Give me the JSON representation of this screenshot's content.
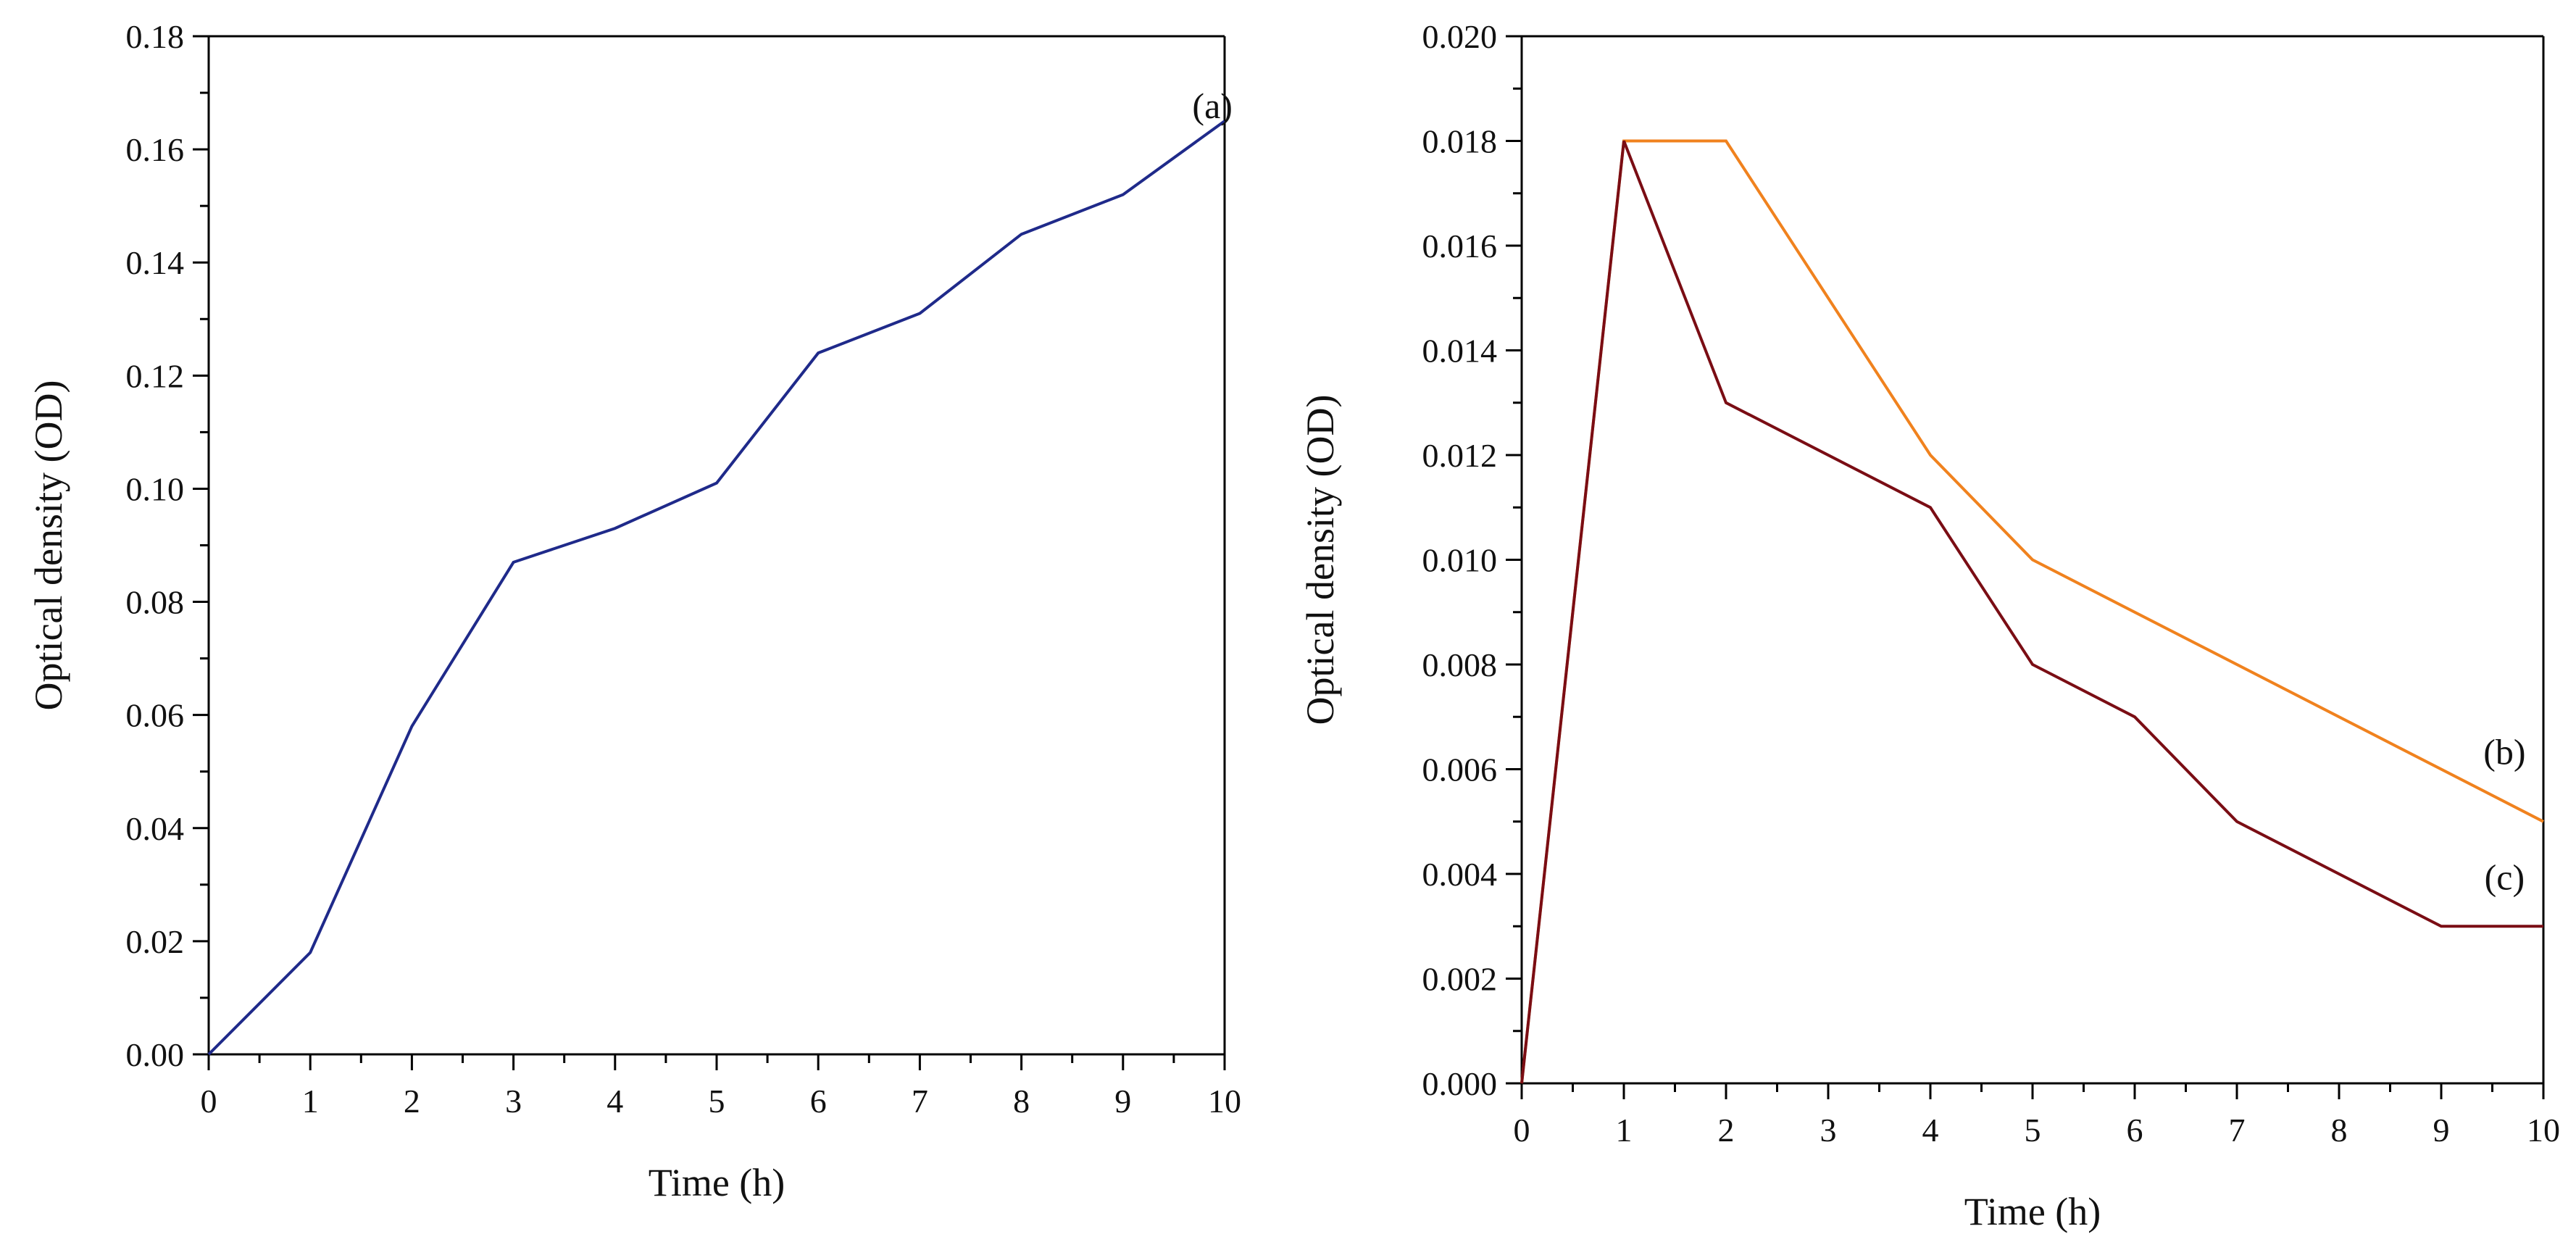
{
  "chart_data": [
    {
      "type": "line",
      "title": "",
      "xlabel": "Time (h)",
      "ylabel": "Optical density (OD)",
      "xlim": [
        0,
        10
      ],
      "ylim": [
        0,
        0.18
      ],
      "x_ticks": [
        0,
        1,
        2,
        3,
        4,
        5,
        6,
        7,
        8,
        9,
        10
      ],
      "x_tick_labels": [
        "0",
        "1",
        "2",
        "3",
        "4",
        "5",
        "6",
        "7",
        "8",
        "9",
        "10"
      ],
      "y_ticks": [
        0,
        0.02,
        0.04,
        0.06,
        0.08,
        0.1,
        0.12,
        0.14,
        0.16,
        0.18
      ],
      "y_tick_labels": [
        "0.00",
        "0.02",
        "0.04",
        "0.06",
        "0.08",
        "0.10",
        "0.12",
        "0.14",
        "0.16",
        "0.18"
      ],
      "grid": false,
      "series": [
        {
          "name": "(a)",
          "color": "#1f2a8a",
          "x": [
            0,
            1,
            2,
            3,
            4,
            5,
            6,
            7,
            8,
            9,
            10
          ],
          "values": [
            0.0,
            0.018,
            0.058,
            0.087,
            0.093,
            0.101,
            0.124,
            0.131,
            0.145,
            0.152,
            0.165
          ],
          "label_text": "(a)",
          "label_anchor": [
            9.88,
            0.1655
          ]
        }
      ]
    },
    {
      "type": "line",
      "title": "",
      "xlabel": "Time (h)",
      "ylabel": "Optical density (OD)",
      "xlim": [
        0,
        10
      ],
      "ylim": [
        0,
        0.02
      ],
      "x_ticks": [
        0,
        1,
        2,
        3,
        4,
        5,
        6,
        7,
        8,
        9,
        10
      ],
      "x_tick_labels": [
        "0",
        "1",
        "2",
        "3",
        "4",
        "5",
        "6",
        "7",
        "8",
        "9",
        "10"
      ],
      "y_ticks": [
        0,
        0.002,
        0.004,
        0.006,
        0.008,
        0.01,
        0.012,
        0.014,
        0.016,
        0.018,
        0.02
      ],
      "y_tick_labels": [
        "0.000",
        "0.002",
        "0.004",
        "0.006",
        "0.008",
        "0.010",
        "0.012",
        "0.014",
        "0.016",
        "0.018",
        "0.020"
      ],
      "grid": false,
      "series": [
        {
          "name": "(b)",
          "color": "#f0821e",
          "x": [
            0,
            1,
            2,
            4,
            5,
            10
          ],
          "values": [
            0.0,
            0.018,
            0.018,
            0.012,
            0.01,
            0.005
          ],
          "label_text": "(b)",
          "label_anchor": [
            9.62,
            0.0061
          ]
        },
        {
          "name": "(c)",
          "color": "#7a0d14",
          "x": [
            0,
            1,
            2,
            4,
            5,
            6,
            7,
            9,
            10
          ],
          "values": [
            0.0,
            0.018,
            0.013,
            0.011,
            0.008,
            0.007,
            0.005,
            0.003,
            0.003
          ],
          "label_text": "(c)",
          "label_anchor": [
            9.62,
            0.0037
          ]
        }
      ]
    }
  ]
}
